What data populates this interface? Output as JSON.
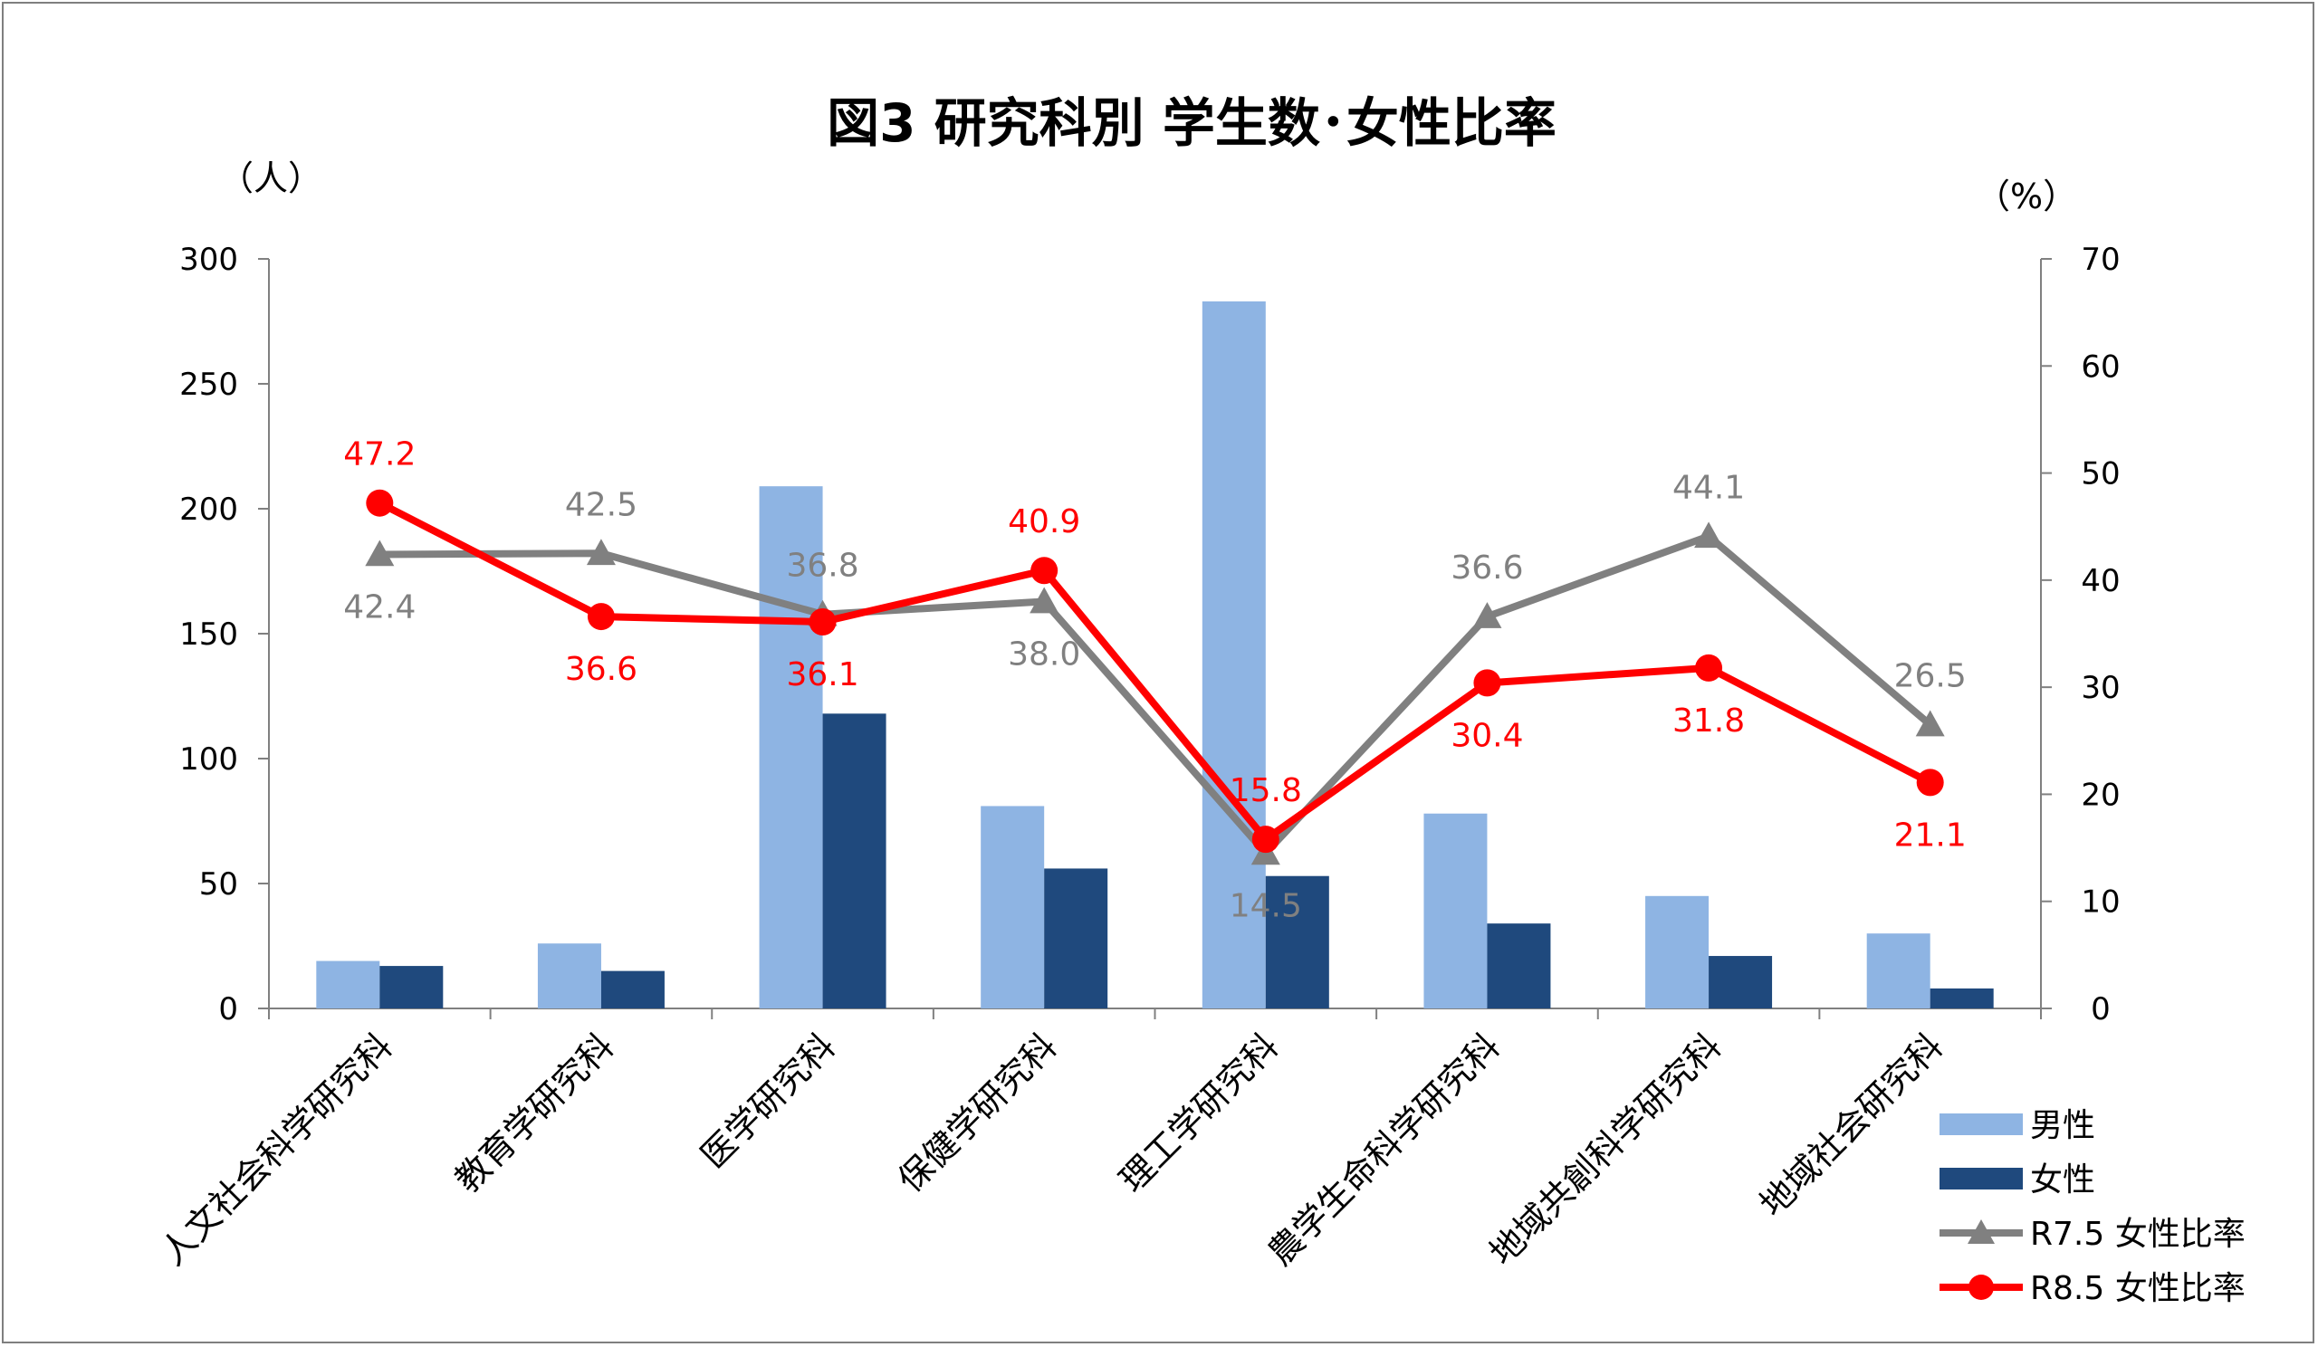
{
  "chart_data": {
    "type": "bar",
    "title": "図3 研究科別 学生数･女性比率",
    "y_left_unit": "（人）",
    "y_right_unit": "（%）",
    "ylim_left": [
      0,
      300
    ],
    "ylim_right": [
      0,
      70
    ],
    "y_left_ticks": [
      "0",
      "50",
      "100",
      "150",
      "200",
      "250",
      "300"
    ],
    "y_right_ticks": [
      "0",
      "10",
      "20",
      "30",
      "40",
      "50",
      "60",
      "70"
    ],
    "categories": [
      "人文社会科学研究科",
      "教育学研究科",
      "医学研究科",
      "保健学研究科",
      "理工学研究科",
      "農学生命科学研究科",
      "地域共創科学研究科",
      "地域社会研究科"
    ],
    "series": [
      {
        "name": "男性",
        "type": "bar",
        "axis": "left",
        "color": "#8EB4E3",
        "values": [
          19,
          26,
          209,
          81,
          283,
          78,
          45,
          30
        ]
      },
      {
        "name": "女性",
        "type": "bar",
        "axis": "left",
        "color": "#1F497D",
        "values": [
          17,
          15,
          118,
          56,
          53,
          34,
          21,
          8
        ]
      },
      {
        "name": "R7.5 女性比率",
        "type": "line",
        "axis": "right",
        "marker": "triangle",
        "color": "#808080",
        "values": [
          42.4,
          42.5,
          36.8,
          38.0,
          14.5,
          36.6,
          44.1,
          26.5
        ],
        "labels": [
          "42.4",
          "42.5",
          "36.8",
          "38.0",
          "14.5",
          "36.6",
          "44.1",
          "26.5"
        ]
      },
      {
        "name": "R8.5 女性比率",
        "type": "line",
        "axis": "right",
        "marker": "circle",
        "color": "#FF0000",
        "values": [
          47.2,
          36.6,
          36.1,
          40.9,
          15.8,
          30.4,
          31.8,
          21.1
        ],
        "labels": [
          "47.2",
          "36.6",
          "36.1",
          "40.9",
          "15.8",
          "30.4",
          "31.8",
          "21.1"
        ]
      }
    ],
    "legend_position": "bottom-right"
  }
}
